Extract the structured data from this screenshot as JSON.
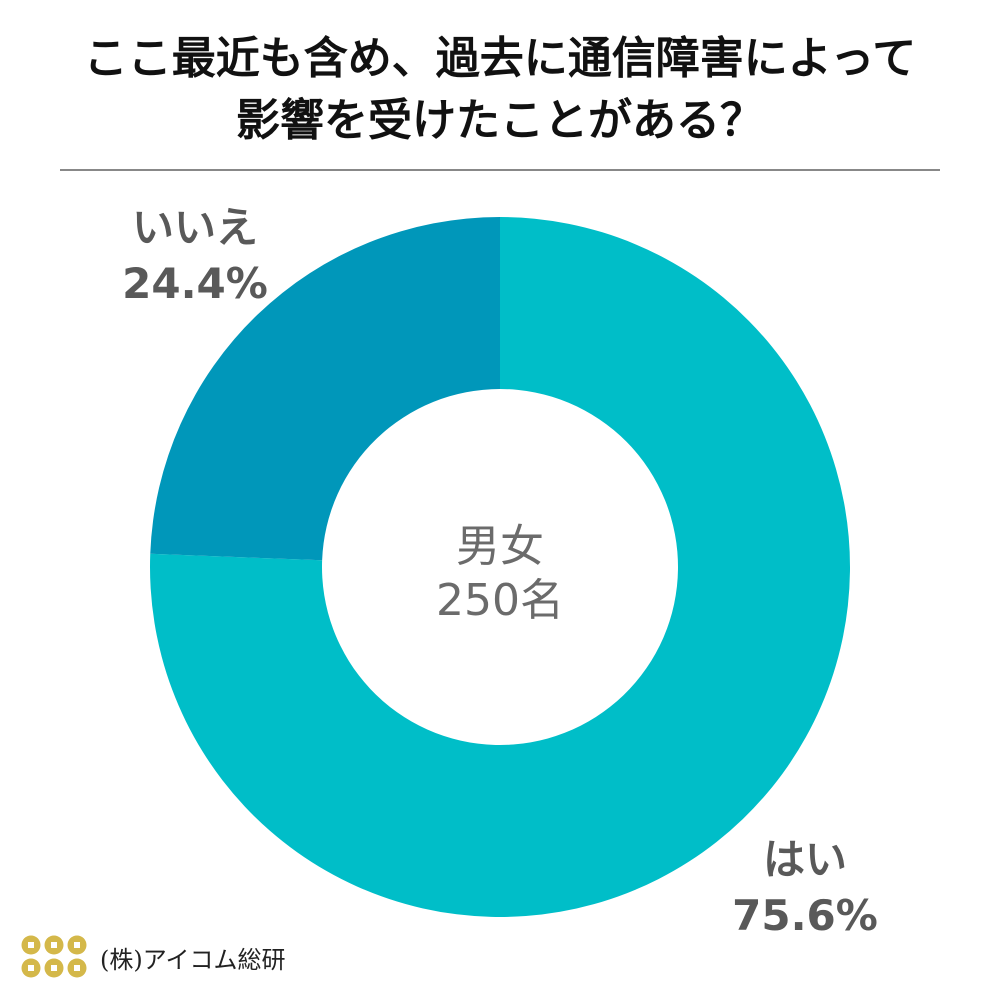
{
  "chart_data": {
    "type": "pie",
    "donut": true,
    "title": "ここ最近も含め、過去に通信障害によって\n影響を受けたことがある？",
    "center_label": [
      "男女",
      "250名"
    ],
    "slices": [
      {
        "label": "はい",
        "value": 75.6,
        "display": "75.6%",
        "color": "#00BEC8"
      },
      {
        "label": "いいえ",
        "value": 24.4,
        "display": "24.4%",
        "color": "#0097BA"
      }
    ]
  },
  "footer": {
    "company": "(株)アイコム総研",
    "logo_color": "#D4B84A"
  }
}
